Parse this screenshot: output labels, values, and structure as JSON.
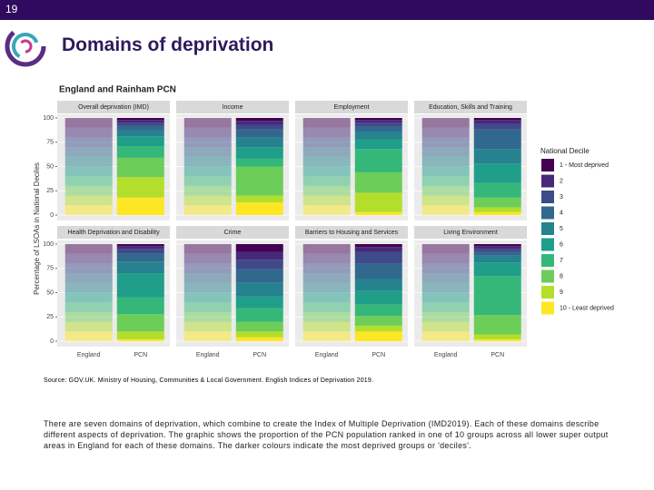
{
  "slide_number": "19",
  "title": "Domains of deprivation",
  "source": "Source: GOV.UK. Ministry of Housing, Communities & Local Government. English Indices of Deprivation 2019.",
  "body": "There are seven domains of deprivation, which combine to create the Index of Multiple Deprivation (IMD2019). Each of these domains describe different aspects of deprivation. The graphic shows the proportion of the PCN population ranked in one of 10 groups across all lower super output areas in England for each of these domains. The darker colours indicate the most deprived groups or 'deciles'.",
  "chart_data": {
    "type": "bar",
    "stacked": true,
    "title": "England and Rainham PCN",
    "y_label": "Percentage of LSOAs in National Deciles",
    "ylim": [
      0,
      100
    ],
    "yticks": [
      0,
      25,
      50,
      75,
      100
    ],
    "grid": true,
    "legend_title": "National Decile",
    "legend_position": "right",
    "categories": [
      "England",
      "PCN"
    ],
    "category_opacity": [
      0.5,
      1
    ],
    "series": [
      {
        "name": "1 - Most deprived",
        "color": "#440154"
      },
      {
        "name": "2",
        "color": "#482878"
      },
      {
        "name": "3",
        "color": "#3E4A89"
      },
      {
        "name": "4",
        "color": "#31688E"
      },
      {
        "name": "5",
        "color": "#26828E"
      },
      {
        "name": "6",
        "color": "#1F9E89"
      },
      {
        "name": "7",
        "color": "#35B779"
      },
      {
        "name": "8",
        "color": "#6DCD59"
      },
      {
        "name": "9",
        "color": "#B4DE2C"
      },
      {
        "name": "10 - Least deprived",
        "color": "#FDE725"
      }
    ],
    "facets": [
      {
        "title": "Overall deprivation (IMD)",
        "values": [
          [
            10,
            10,
            10,
            10,
            10,
            10,
            10,
            10,
            10,
            10
          ],
          [
            2,
            3,
            3,
            5,
            6,
            10,
            12,
            20,
            21,
            18
          ]
        ]
      },
      {
        "title": "Income",
        "values": [
          [
            10,
            10,
            10,
            10,
            10,
            10,
            10,
            10,
            10,
            10
          ],
          [
            3,
            4,
            5,
            8,
            10,
            12,
            8,
            30,
            7,
            13
          ]
        ]
      },
      {
        "title": "Employment",
        "values": [
          [
            10,
            10,
            10,
            10,
            10,
            10,
            10,
            10,
            10,
            10
          ],
          [
            2,
            3,
            4,
            5,
            8,
            10,
            24,
            21,
            20,
            3
          ]
        ]
      },
      {
        "title": "Education, Skills and Training",
        "values": [
          [
            10,
            10,
            10,
            10,
            10,
            10,
            10,
            10,
            10,
            10
          ],
          [
            2,
            4,
            6,
            20,
            15,
            20,
            15,
            10,
            5,
            3
          ]
        ]
      },
      {
        "title": "Health Deprivation and Disability",
        "values": [
          [
            10,
            10,
            10,
            10,
            10,
            10,
            10,
            10,
            10,
            10
          ],
          [
            2,
            3,
            5,
            8,
            12,
            25,
            17,
            18,
            8,
            2
          ]
        ]
      },
      {
        "title": "Crime",
        "values": [
          [
            10,
            10,
            10,
            10,
            10,
            10,
            10,
            10,
            10,
            10
          ],
          [
            8,
            8,
            10,
            14,
            14,
            12,
            14,
            10,
            6,
            4
          ]
        ]
      },
      {
        "title": "Barriers to Housing and Services",
        "values": [
          [
            10,
            10,
            10,
            10,
            10,
            10,
            10,
            10,
            10,
            10
          ],
          [
            3,
            5,
            12,
            16,
            12,
            14,
            12,
            10,
            6,
            10
          ]
        ]
      },
      {
        "title": "Living Environment",
        "values": [
          [
            10,
            10,
            10,
            10,
            10,
            10,
            10,
            10,
            10,
            10
          ],
          [
            2,
            3,
            3,
            4,
            7,
            14,
            40,
            20,
            5,
            2
          ]
        ]
      }
    ]
  }
}
